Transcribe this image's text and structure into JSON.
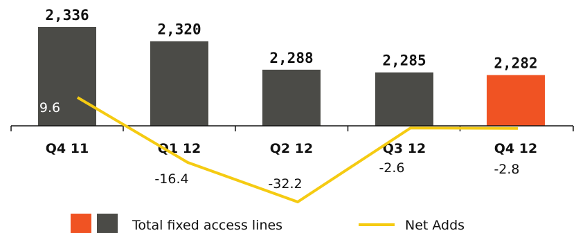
{
  "chart_data": {
    "type": "bar",
    "categories": [
      "Q4 11",
      "Q1 12",
      "Q2 12",
      "Q3 12",
      "Q4 12"
    ],
    "series": [
      {
        "name": "Total fixed access lines",
        "type": "bar",
        "values": [
          2336,
          2320,
          2288,
          2285,
          2282
        ],
        "value_labels": [
          "2,336",
          "2,320",
          "2,288",
          "2,285",
          "2,282"
        ]
      },
      {
        "name": "Net Adds",
        "type": "line",
        "values": [
          9.6,
          -16.4,
          -32.2,
          -2.6,
          -2.8
        ],
        "value_labels": [
          "9.6",
          "-16.4",
          "-32.2",
          "-2.6",
          "-2.8"
        ]
      }
    ],
    "legend_placement": "bottom",
    "grid": false,
    "colors": {
      "bar": "#4b4b47",
      "bar_highlight": "#f05323",
      "line": "#f5cb12",
      "axis": "#111111"
    }
  }
}
